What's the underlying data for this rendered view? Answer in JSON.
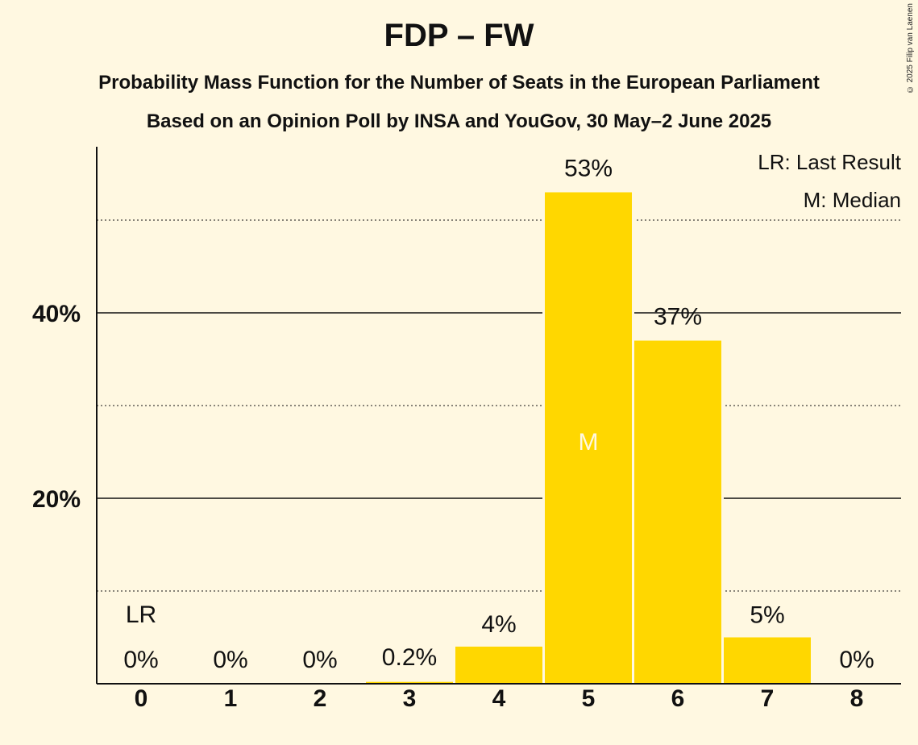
{
  "title": "FDP – FW",
  "subtitle_line1": "Probability Mass Function for the Number of Seats in the European Parliament",
  "subtitle_line2": "Based on an Opinion Poll by INSA and YouGov, 30 May–2 June 2025",
  "copyright": "© 2025 Filip van Laenen",
  "legend": {
    "last_result": "LR: Last Result",
    "median": "M: Median"
  },
  "colors": {
    "bar": "#FFD700",
    "background": "#FFF8E1",
    "axis": "#111111"
  },
  "chart_data": {
    "type": "bar",
    "categories": [
      "0",
      "1",
      "2",
      "3",
      "4",
      "5",
      "6",
      "7",
      "8"
    ],
    "values": [
      0,
      0,
      0,
      0.2,
      4,
      53,
      37,
      5,
      0
    ],
    "value_labels": [
      "0%",
      "0%",
      "0%",
      "0.2%",
      "4%",
      "53%",
      "37%",
      "5%",
      "0%"
    ],
    "ylim": [
      0,
      58
    ],
    "y_major_ticks": [
      20,
      40
    ],
    "y_major_tick_labels": [
      "20%",
      "40%"
    ],
    "y_minor_gridlines": [
      10,
      30,
      50
    ],
    "last_result_category": "0",
    "last_result_marker": "LR",
    "median_category": "5",
    "median_marker": "M",
    "legend_position": "top-right"
  }
}
